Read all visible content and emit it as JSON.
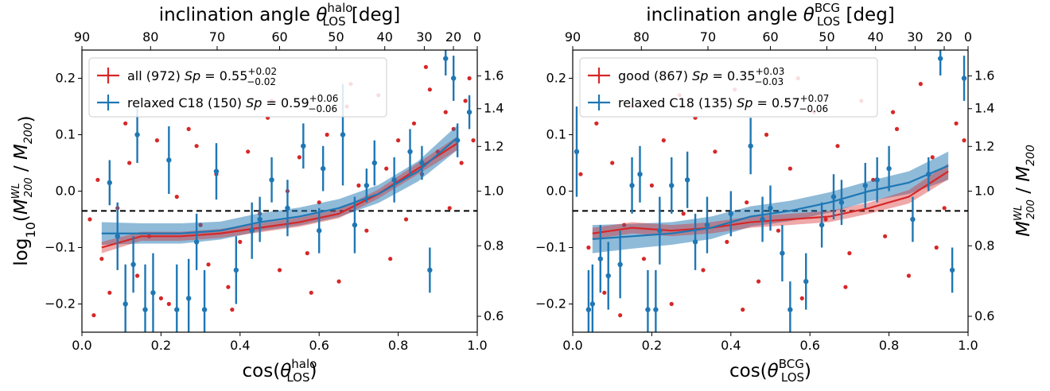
{
  "figure": {
    "y_left_label": "log10(M200^WL / M200)",
    "y_right_label": "M200^WL / M200"
  },
  "chart_data": [
    {
      "type": "scatter",
      "panel": "left",
      "title_top": "inclination angle θ_LOS^halo [deg]",
      "xlabel": "cos(θ_LOS^halo)",
      "ylabel": "log10(M200^WL / M200)",
      "ylabel_right": "M200^WL / M200",
      "xlim": [
        0.0,
        1.0
      ],
      "ylim": [
        -0.25,
        0.25
      ],
      "x_ticks": [
        "0.0",
        "0.2",
        "0.4",
        "0.6",
        "0.8",
        "1.0"
      ],
      "y_ticks": [
        "−0.2",
        "−0.1",
        "0.0",
        "0.1",
        "0.2"
      ],
      "top_ticks_deg": [
        "90",
        "80",
        "70",
        "60",
        "50",
        "40",
        "30",
        "20",
        "0"
      ],
      "right_ticks": [
        "0.6",
        "0.8",
        "1.0",
        "1.2",
        "1.4",
        "1.6"
      ],
      "reference_line_y": -0.035,
      "legend_position": "top-left",
      "series": [
        {
          "name": "all (972)",
          "sp_text": "Sp = 0.55",
          "sp_sup": "+0.02",
          "sp_sub": "−0.02",
          "color": "#d62728",
          "trend": {
            "x": [
              0.05,
              0.15,
              0.25,
              0.35,
              0.45,
              0.55,
              0.65,
              0.75,
              0.85,
              0.95
            ],
            "y": [
              -0.1,
              -0.08,
              -0.08,
              -0.075,
              -0.065,
              -0.055,
              -0.04,
              -0.005,
              0.04,
              0.085
            ],
            "err": [
              0.01,
              0.008,
              0.008,
              0.008,
              0.008,
              0.008,
              0.008,
              0.008,
              0.01,
              0.012
            ]
          },
          "points": {
            "x": [
              0.02,
              0.04,
              0.05,
              0.07,
              0.09,
              0.12,
              0.14,
              0.17,
              0.19,
              0.22,
              0.24,
              0.27,
              0.3,
              0.32,
              0.34,
              0.37,
              0.4,
              0.42,
              0.45,
              0.47,
              0.5,
              0.52,
              0.55,
              0.57,
              0.6,
              0.62,
              0.65,
              0.67,
              0.7,
              0.72,
              0.75,
              0.77,
              0.8,
              0.82,
              0.84,
              0.86,
              0.88,
              0.9,
              0.92,
              0.94,
              0.96,
              0.98,
              0.99,
              0.03,
              0.11,
              0.2,
              0.29,
              0.38,
              0.48,
              0.58,
              0.68,
              0.78,
              0.87,
              0.93,
              0.97
            ],
            "y": [
              -0.05,
              0.02,
              -0.12,
              -0.18,
              -0.03,
              0.05,
              -0.15,
              -0.08,
              0.09,
              -0.2,
              -0.01,
              0.11,
              -0.06,
              -0.13,
              0.03,
              -0.17,
              -0.09,
              0.07,
              -0.04,
              0.13,
              -0.14,
              0.0,
              0.06,
              -0.11,
              -0.02,
              0.1,
              -0.16,
              0.15,
              0.01,
              -0.07,
              0.17,
              0.04,
              0.09,
              -0.05,
              0.12,
              0.03,
              0.18,
              0.07,
              0.14,
              0.11,
              0.05,
              0.2,
              0.09,
              -0.22,
              0.12,
              -0.19,
              0.08,
              -0.21,
              0.16,
              -0.18,
              0.19,
              -0.12,
              0.22,
              -0.03,
              0.16
            ]
          }
        },
        {
          "name": "relaxed C18 (150)",
          "sp_text": "Sp = 0.59",
          "sp_sup": "+0.06",
          "sp_sub": "−0.06",
          "color": "#1f77b4",
          "trend": {
            "x": [
              0.05,
              0.15,
              0.25,
              0.35,
              0.45,
              0.55,
              0.65,
              0.75,
              0.85,
              0.95
            ],
            "y": [
              -0.075,
              -0.075,
              -0.075,
              -0.07,
              -0.055,
              -0.045,
              -0.03,
              -0.005,
              0.035,
              0.095
            ],
            "err": [
              0.02,
              0.018,
              0.018,
              0.016,
              0.016,
              0.016,
              0.016,
              0.016,
              0.018,
              0.022
            ]
          },
          "points": {
            "x": [
              0.07,
              0.09,
              0.11,
              0.14,
              0.16,
              0.18,
              0.22,
              0.24,
              0.27,
              0.31,
              0.34,
              0.39,
              0.43,
              0.48,
              0.52,
              0.56,
              0.61,
              0.66,
              0.69,
              0.74,
              0.79,
              0.83,
              0.88,
              0.92,
              0.95,
              0.98,
              0.13,
              0.29,
              0.45,
              0.6,
              0.72,
              0.86,
              0.94
            ],
            "y": [
              0.015,
              -0.08,
              -0.2,
              0.1,
              -0.21,
              -0.18,
              0.055,
              -0.21,
              -0.19,
              -0.21,
              0.035,
              -0.14,
              -0.07,
              0.02,
              -0.03,
              0.08,
              0.04,
              0.1,
              -0.06,
              0.05,
              0.02,
              0.07,
              -0.14,
              0.235,
              0.09,
              0.14,
              -0.13,
              -0.09,
              -0.05,
              -0.07,
              0.01,
              0.05,
              0.2
            ],
            "err": [
              0.04,
              0.06,
              0.07,
              0.05,
              0.08,
              0.07,
              0.06,
              0.08,
              0.07,
              0.07,
              0.05,
              0.06,
              0.05,
              0.04,
              0.05,
              0.04,
              0.04,
              0.09,
              0.05,
              0.04,
              0.04,
              0.04,
              0.04,
              0.03,
              0.03,
              0.03,
              0.05,
              0.05,
              0.04,
              0.04,
              0.03,
              0.03,
              0.04
            ]
          }
        }
      ]
    },
    {
      "type": "scatter",
      "panel": "right",
      "title_top": "inclination angle θ_LOS^BCG [deg]",
      "xlabel": "cos(θ_LOS^BCG)",
      "ylabel": "log10(M200^WL / M200)",
      "ylabel_right": "M200^WL / M200",
      "xlim": [
        0.0,
        1.0
      ],
      "ylim": [
        -0.25,
        0.25
      ],
      "x_ticks": [
        "0.0",
        "0.2",
        "0.4",
        "0.6",
        "0.8",
        "1.0"
      ],
      "y_ticks": [
        "−0.2",
        "−0.1",
        "0.0",
        "0.1",
        "0.2"
      ],
      "top_ticks_deg": [
        "90",
        "80",
        "70",
        "60",
        "50",
        "40",
        "30",
        "20",
        "0"
      ],
      "right_ticks": [
        "0.6",
        "0.8",
        "1.0",
        "1.2",
        "1.4",
        "1.6"
      ],
      "reference_line_y": -0.035,
      "legend_position": "top-left",
      "series": [
        {
          "name": "good (867)",
          "sp_text": "Sp = 0.35",
          "sp_sup": "+0.03",
          "sp_sub": "−0.03",
          "color": "#d62728",
          "trend": {
            "x": [
              0.05,
              0.15,
              0.25,
              0.35,
              0.45,
              0.55,
              0.65,
              0.75,
              0.85,
              0.95
            ],
            "y": [
              -0.075,
              -0.065,
              -0.07,
              -0.065,
              -0.055,
              -0.05,
              -0.045,
              -0.03,
              -0.01,
              0.035
            ],
            "err": [
              0.01,
              0.01,
              0.01,
              0.01,
              0.01,
              0.01,
              0.01,
              0.01,
              0.012,
              0.014
            ]
          },
          "points": {
            "x": [
              0.02,
              0.04,
              0.06,
              0.08,
              0.1,
              0.13,
              0.15,
              0.18,
              0.2,
              0.23,
              0.25,
              0.28,
              0.31,
              0.33,
              0.36,
              0.39,
              0.41,
              0.44,
              0.47,
              0.49,
              0.52,
              0.55,
              0.58,
              0.61,
              0.64,
              0.67,
              0.7,
              0.73,
              0.76,
              0.79,
              0.82,
              0.85,
              0.88,
              0.91,
              0.94,
              0.97,
              0.99,
              0.12,
              0.27,
              0.43,
              0.57,
              0.69,
              0.81,
              0.92
            ],
            "y": [
              0.03,
              -0.1,
              0.12,
              -0.18,
              0.05,
              -0.06,
              0.15,
              -0.12,
              0.01,
              0.09,
              -0.2,
              -0.04,
              0.13,
              -0.14,
              0.07,
              -0.09,
              0.18,
              -0.02,
              -0.16,
              0.1,
              -0.07,
              0.04,
              -0.19,
              0.14,
              -0.05,
              0.08,
              -0.11,
              0.16,
              0.02,
              -0.08,
              0.11,
              -0.15,
              0.19,
              0.06,
              -0.03,
              0.12,
              0.09,
              -0.22,
              0.17,
              -0.21,
              0.2,
              -0.17,
              0.14,
              -0.1
            ]
          }
        },
        {
          "name": "relaxed C18 (135)",
          "sp_text": "Sp = 0.57",
          "sp_sup": "+0.07",
          "sp_sub": "−0.06",
          "color": "#1f77b4",
          "trend": {
            "x": [
              0.05,
              0.15,
              0.25,
              0.35,
              0.45,
              0.55,
              0.65,
              0.75,
              0.85,
              0.95
            ],
            "y": [
              -0.085,
              -0.08,
              -0.075,
              -0.065,
              -0.045,
              -0.035,
              -0.02,
              0.0,
              0.015,
              0.045
            ],
            "err": [
              0.025,
              0.022,
              0.02,
              0.02,
              0.018,
              0.018,
              0.018,
              0.018,
              0.02,
              0.025
            ]
          },
          "points": {
            "x": [
              0.01,
              0.04,
              0.05,
              0.09,
              0.12,
              0.15,
              0.19,
              0.21,
              0.22,
              0.25,
              0.29,
              0.34,
              0.4,
              0.45,
              0.48,
              0.53,
              0.55,
              0.59,
              0.63,
              0.68,
              0.74,
              0.8,
              0.86,
              0.93,
              0.96,
              0.99,
              0.07,
              0.17,
              0.31,
              0.5,
              0.66,
              0.77,
              0.9
            ],
            "y": [
              0.07,
              -0.21,
              -0.2,
              -0.15,
              -0.13,
              0.01,
              -0.21,
              -0.21,
              -0.07,
              0.01,
              0.02,
              -0.06,
              -0.04,
              0.08,
              -0.05,
              -0.11,
              -0.21,
              -0.16,
              -0.06,
              -0.02,
              0.01,
              0.04,
              -0.05,
              0.235,
              -0.14,
              0.2,
              -0.12,
              0.03,
              -0.09,
              -0.03,
              -0.01,
              0.02,
              0.03
            ],
            "err": [
              0.08,
              0.07,
              0.07,
              0.06,
              0.06,
              0.05,
              0.07,
              0.07,
              0.06,
              0.05,
              0.05,
              0.05,
              0.04,
              0.05,
              0.04,
              0.05,
              0.05,
              0.05,
              0.04,
              0.04,
              0.04,
              0.04,
              0.04,
              0.03,
              0.04,
              0.04,
              0.06,
              0.05,
              0.05,
              0.04,
              0.04,
              0.04,
              0.03
            ]
          }
        }
      ]
    }
  ]
}
